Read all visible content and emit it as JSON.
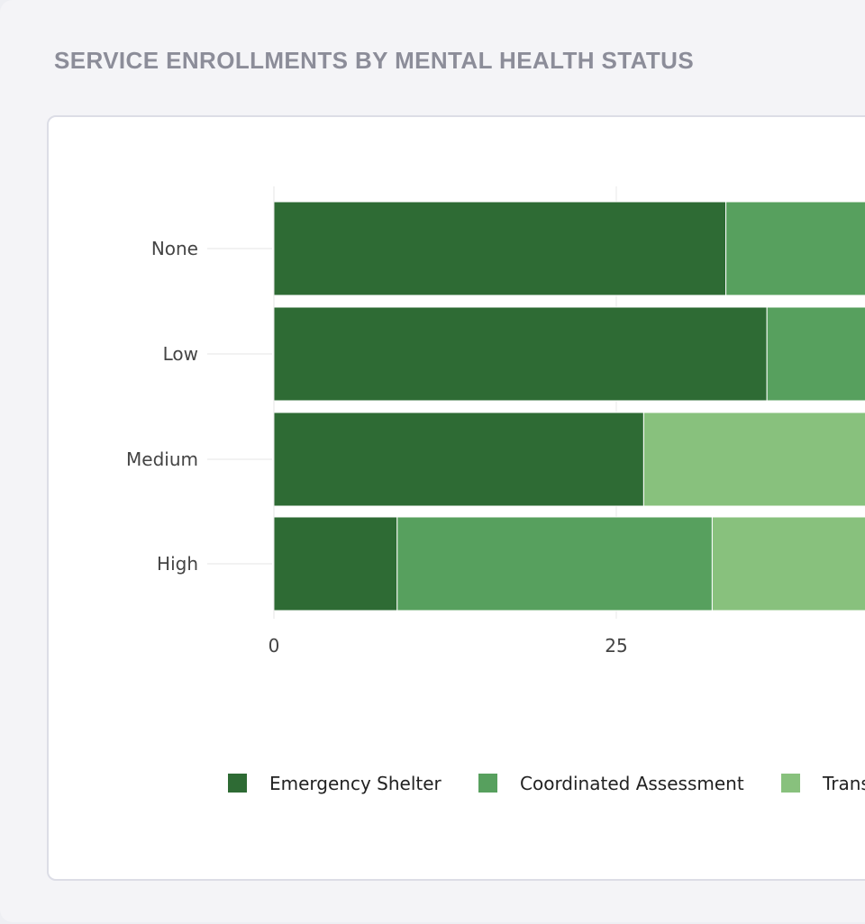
{
  "panel": {
    "title": "SERVICE ENROLLMENTS BY MENTAL HEALTH STATUS"
  },
  "chart_data": {
    "type": "bar",
    "orientation": "horizontal",
    "stacked": true,
    "title": "",
    "xlabel": "",
    "ylabel": "",
    "categories": [
      "None",
      "Low",
      "Medium",
      "High"
    ],
    "x_ticks": [
      0,
      25
    ],
    "grid": true,
    "legend_position": "bottom",
    "series": [
      {
        "name": "Emergency Shelter",
        "color": "#2e6b34",
        "values": [
          33,
          36,
          27,
          9
        ]
      },
      {
        "name": "Coordinated Assessment",
        "color": "#57a05e",
        "values": [
          12,
          9,
          0,
          23
        ]
      },
      {
        "name": "Trans",
        "color": "#88c17d",
        "values": [
          0,
          0,
          20,
          14
        ]
      }
    ]
  }
}
